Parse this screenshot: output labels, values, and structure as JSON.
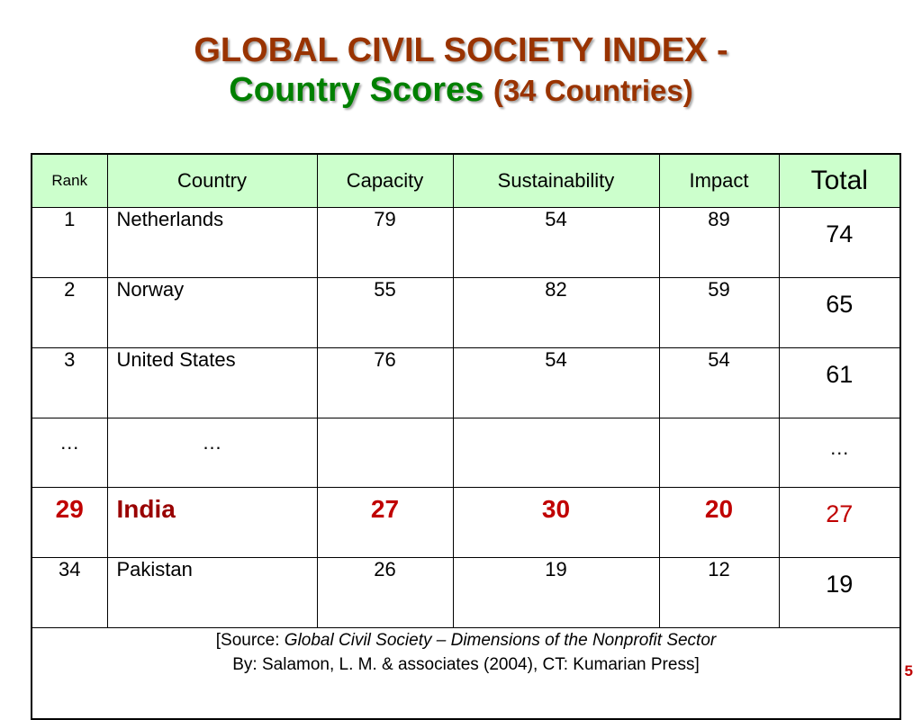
{
  "title": {
    "line1": "GLOBAL CIVIL SOCIETY INDEX -",
    "line2_main": "Country Scores",
    "line2_sub": "(34 Countries)"
  },
  "table": {
    "headers": [
      "Rank",
      "Country",
      "Capacity",
      "Sustainability",
      "Impact",
      "Total"
    ],
    "rows": [
      {
        "rank": "1",
        "country": "Netherlands",
        "capacity": "79",
        "sustainability": "54",
        "impact": "89",
        "total": "74"
      },
      {
        "rank": "2",
        "country": "Norway",
        "capacity": "55",
        "sustainability": "82",
        "impact": "59",
        "total": "65"
      },
      {
        "rank": "3",
        "country": "United States",
        "capacity": "76",
        "sustainability": "54",
        "impact": "54",
        "total": "61"
      },
      {
        "rank": "…",
        "country": "…",
        "capacity": "",
        "sustainability": "",
        "impact": "",
        "total": "…"
      },
      {
        "rank": "29",
        "country": "India",
        "capacity": "27",
        "sustainability": "30",
        "impact": "20",
        "total": "27"
      },
      {
        "rank": "34",
        "country": "Pakistan",
        "capacity": "26",
        "sustainability": "19",
        "impact": "12",
        "total": "19"
      }
    ],
    "source": {
      "prefix": "[Source: ",
      "title": "Global Civil Society – Dimensions of the Nonprofit Sector",
      "line2": "By: Salamon, L. M. &  associates (2004), CT: Kumarian Press]"
    }
  },
  "page_number": "5",
  "colors": {
    "title_red": "#993300",
    "title_green": "#008000",
    "header_bg": "#ccffcc",
    "highlight_red": "#c00000"
  }
}
